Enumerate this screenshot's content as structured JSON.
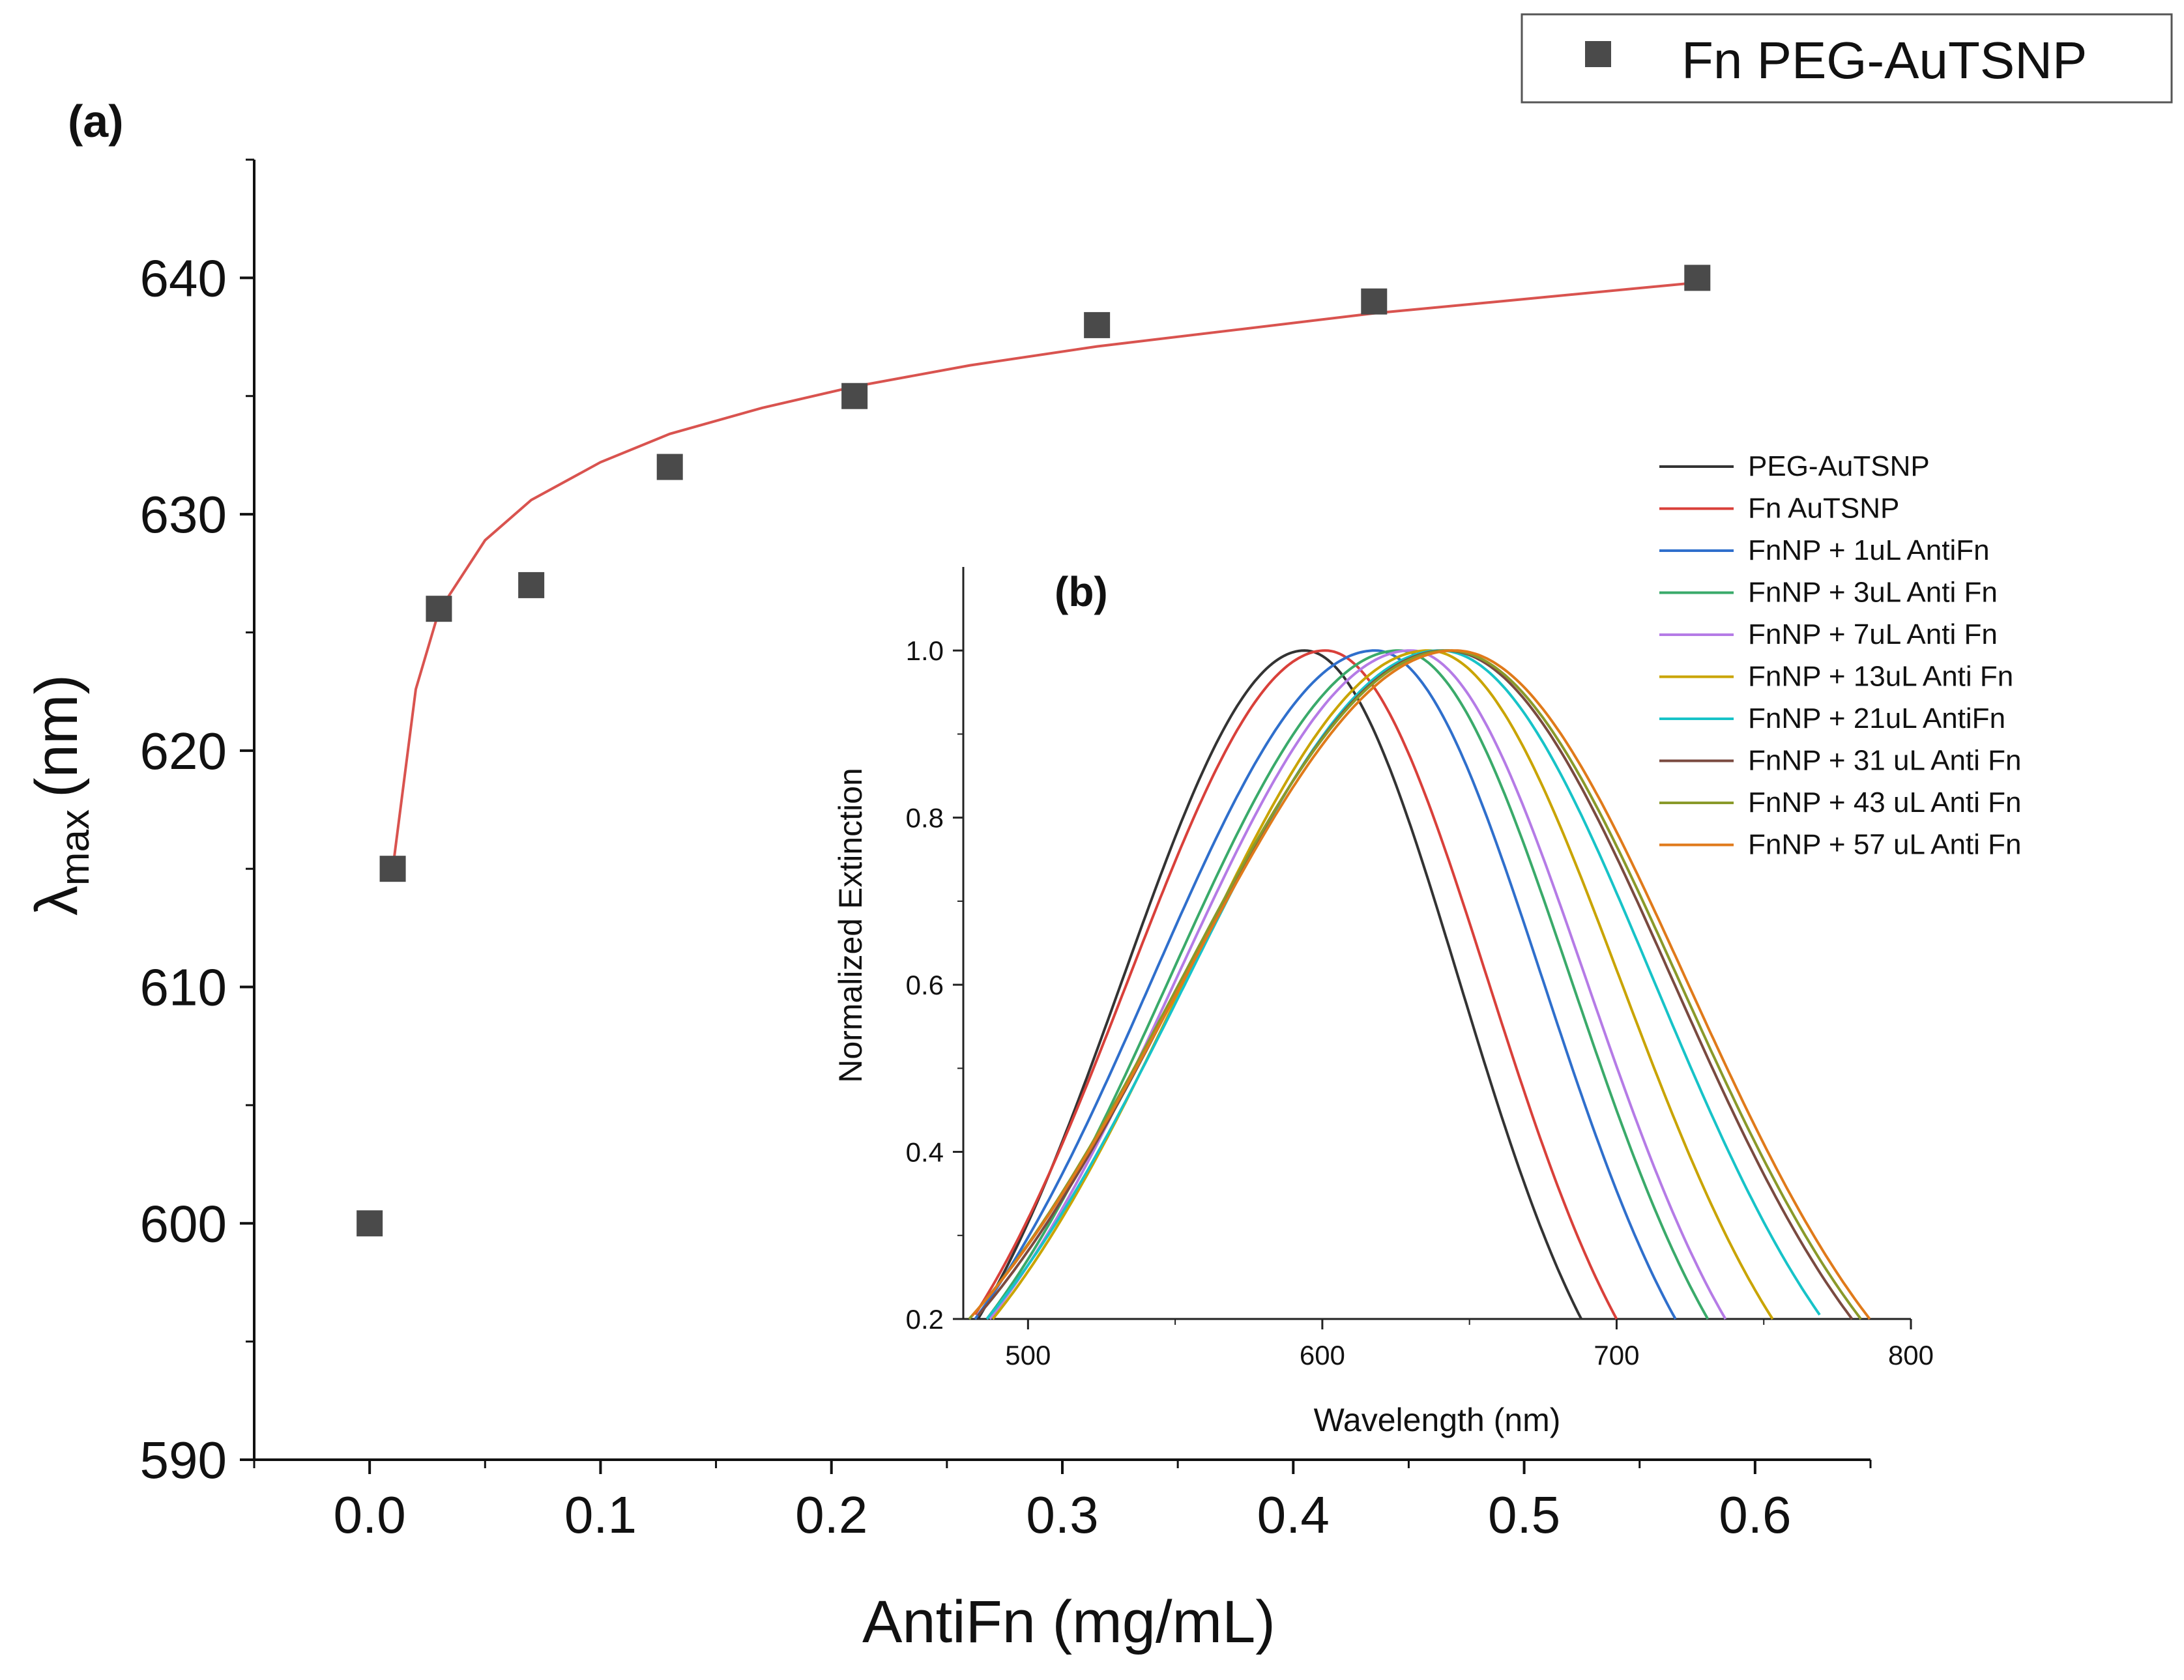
{
  "chart_data": [
    {
      "panel": "(a)",
      "type": "scatter",
      "xlabel": "AntiFn (mg/mL)",
      "ylabel_symbol": "λ",
      "ylabel_subscript": "max",
      "ylabel_unit": "(nm)",
      "xlim": [
        -0.05,
        0.65
      ],
      "ylim": [
        590,
        645
      ],
      "xticks": [
        0.0,
        0.1,
        0.2,
        0.3,
        0.4,
        0.5,
        0.6
      ],
      "xtick_labels": [
        "0.0",
        "0.1",
        "0.2",
        "0.3",
        "0.4",
        "0.5",
        "0.6"
      ],
      "yticks": [
        590,
        600,
        610,
        620,
        630,
        640
      ],
      "ytick_labels": [
        "590",
        "600",
        "610",
        "620",
        "630",
        "640"
      ],
      "legend": "Fn PEG-AuTSNP",
      "legend_position": "top-right",
      "series": [
        {
          "name": "Fn PEG-AuTSNP",
          "marker": "square",
          "color": "#4a4a4a",
          "x": [
            0.0,
            0.01,
            0.03,
            0.07,
            0.13,
            0.21,
            0.315,
            0.435,
            0.575
          ],
          "y": [
            600,
            615,
            626,
            627,
            632,
            635,
            638,
            639,
            640
          ]
        }
      ],
      "fit_line": {
        "color": "#d9534f",
        "x": [
          0.01,
          0.02,
          0.03,
          0.05,
          0.07,
          0.1,
          0.13,
          0.17,
          0.21,
          0.26,
          0.315,
          0.375,
          0.435,
          0.5,
          0.575
        ],
        "y": [
          615,
          622.6,
          625.9,
          628.9,
          630.6,
          632.2,
          633.4,
          634.5,
          635.4,
          636.3,
          637.1,
          637.8,
          638.5,
          639.1,
          639.8
        ]
      }
    },
    {
      "panel": "(b)",
      "type": "line",
      "xlabel": "Wavelength (nm)",
      "ylabel": "Normalized Extinction",
      "xlim": [
        478,
        800
      ],
      "ylim": [
        0.2,
        1.1
      ],
      "xticks": [
        500,
        600,
        700,
        800
      ],
      "xtick_labels": [
        "500",
        "600",
        "700",
        "800"
      ],
      "yticks": [
        0.2,
        0.4,
        0.6,
        0.8,
        1.0
      ],
      "ytick_labels": [
        "0.2",
        "0.4",
        "0.6",
        "0.8",
        "1.0"
      ],
      "legend_position": "top-right",
      "series": [
        {
          "name": "PEG-AuTSNP",
          "color": "#333333",
          "peak": 594,
          "left_0_2": 483,
          "right_0_2": 688
        },
        {
          "name": "Fn AuTSNP",
          "color": "#d9403a",
          "peak": 601,
          "left_0_2": 481,
          "right_0_2": 700
        },
        {
          "name": "FnNP + 1uL AntiFn",
          "color": "#2f6fcc",
          "peak": 618,
          "left_0_2": 482,
          "right_0_2": 720
        },
        {
          "name": "FnNP + 3uL Anti Fn",
          "color": "#3aaa6a",
          "peak": 626,
          "left_0_2": 486,
          "right_0_2": 731
        },
        {
          "name": "FnNP + 7uL Anti Fn",
          "color": "#b57be6",
          "peak": 630,
          "left_0_2": 487,
          "right_0_2": 737
        },
        {
          "name": "FnNP + 13uL Anti Fn",
          "color": "#c9a400",
          "peak": 636,
          "left_0_2": 488,
          "right_0_2": 753
        },
        {
          "name": "FnNP + 21uL AntiFn",
          "color": "#17c3c8",
          "peak": 640,
          "left_0_2": 486,
          "right_0_2": 770
        },
        {
          "name": "FnNP + 31 uL Anti Fn",
          "color": "#7a4a40",
          "peak": 642,
          "left_0_2": 482,
          "right_0_2": 780
        },
        {
          "name": "FnNP + 43 uL Anti Fn",
          "color": "#8a9a2a",
          "peak": 643,
          "left_0_2": 480,
          "right_0_2": 783
        },
        {
          "name": "FnNP + 57 uL Anti Fn",
          "color": "#e07a1a",
          "peak": 645,
          "left_0_2": 480,
          "right_0_2": 786
        }
      ]
    }
  ]
}
